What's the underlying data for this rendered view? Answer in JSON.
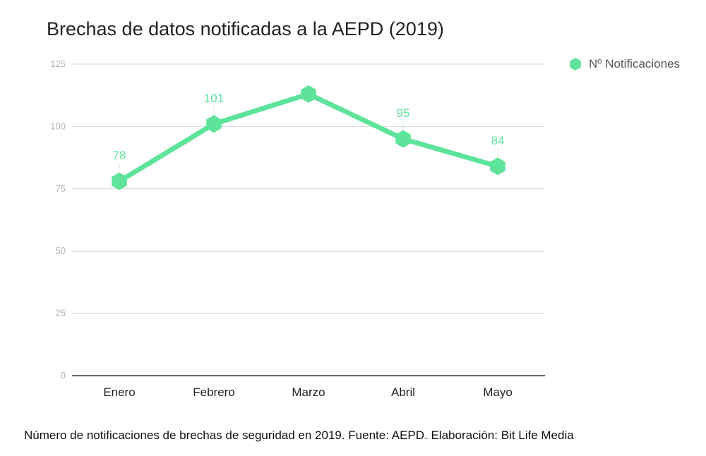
{
  "chart_data": {
    "type": "line",
    "title": "Brechas de datos notificadas a la AEPD (2019)",
    "categories": [
      "Enero",
      "Febrero",
      "Marzo",
      "Abril",
      "Mayo"
    ],
    "series": [
      {
        "name": "Nº Notificaciones",
        "values": [
          78,
          101,
          113,
          95,
          84
        ],
        "data_labels": [
          "78",
          "101",
          "",
          "95",
          "84"
        ]
      }
    ],
    "xlabel": "",
    "ylabel": "",
    "ylim": [
      0,
      125
    ],
    "yticks": [
      0,
      25,
      50,
      75,
      100,
      125
    ],
    "grid": true,
    "legend_position": "right",
    "color": "#5ee39a"
  },
  "caption": "Número de notificaciones de brechas de seguridad en 2019. Fuente: AEPD. Elaboración: Bit Life Media"
}
